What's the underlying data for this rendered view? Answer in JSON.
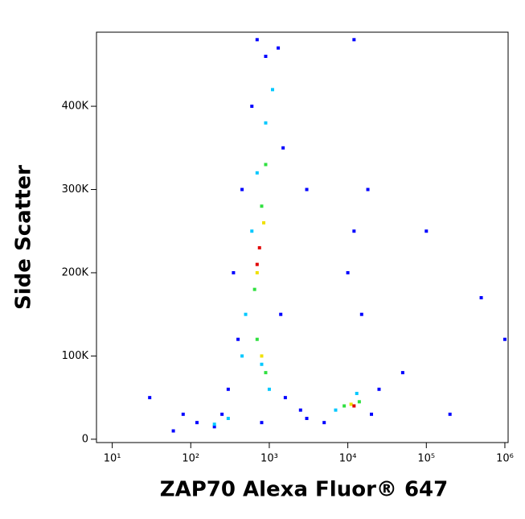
{
  "chart_data": {
    "type": "scatter",
    "x_label": "ZAP70 Alexa Fluor® 647",
    "y_label": "Side Scatter",
    "x_scale": "log",
    "xlim": [
      6.3,
      1100000
    ],
    "xticks": [
      {
        "value": 10,
        "label": "10¹"
      },
      {
        "value": 100,
        "label": "10²"
      },
      {
        "value": 1000,
        "label": "10³"
      },
      {
        "value": 10000,
        "label": "10⁴"
      },
      {
        "value": 100000,
        "label": "10⁵"
      },
      {
        "value": 1000000,
        "label": "10⁶"
      }
    ],
    "ylim": [
      -4000,
      489000
    ],
    "yticks": [
      0,
      {
        "value": 100000,
        "label": "100K"
      },
      {
        "value": 200000,
        "label": "200K"
      },
      {
        "value": 300000,
        "label": "300K"
      },
      {
        "value": 400000,
        "label": "400K"
      }
    ],
    "series": [
      {
        "color": "#0000ff",
        "x": [
          120,
          200,
          250,
          300,
          400,
          350,
          450,
          600,
          900,
          1300,
          1500,
          1400,
          1600,
          2500,
          3000,
          5000,
          20000,
          25000,
          15000,
          12000,
          18000,
          10000,
          50000,
          100000,
          30,
          60,
          80,
          800,
          3000,
          200000,
          500000,
          1000000,
          700,
          12000
        ],
        "y": [
          20000,
          15000,
          30000,
          60000,
          120000,
          200000,
          300000,
          400000,
          460000,
          470000,
          350000,
          150000,
          50000,
          35000,
          25000,
          20000,
          30000,
          60000,
          150000,
          250000,
          300000,
          200000,
          80000,
          250000,
          50000,
          10000,
          30000,
          20000,
          300000,
          30000,
          170000,
          120000,
          480000,
          480000
        ]
      },
      {
        "color": "#00c8ff",
        "x": [
          500,
          600,
          700,
          900,
          1100,
          800,
          1000,
          450,
          13000,
          7000,
          300,
          200
        ],
        "y": [
          150000,
          250000,
          320000,
          380000,
          420000,
          90000,
          60000,
          100000,
          55000,
          35000,
          25000,
          18000
        ]
      },
      {
        "color": "#30e040",
        "x": [
          650,
          800,
          900,
          700,
          900,
          9000,
          14000
        ],
        "y": [
          180000,
          280000,
          330000,
          120000,
          80000,
          40000,
          45000
        ]
      },
      {
        "color": "#f0e000",
        "x": [
          700,
          850,
          800,
          11000
        ],
        "y": [
          200000,
          260000,
          100000,
          42000
        ]
      },
      {
        "color": "#e00000",
        "x": [
          750,
          700,
          12000
        ],
        "y": [
          230000,
          210000,
          40000
        ]
      }
    ]
  }
}
